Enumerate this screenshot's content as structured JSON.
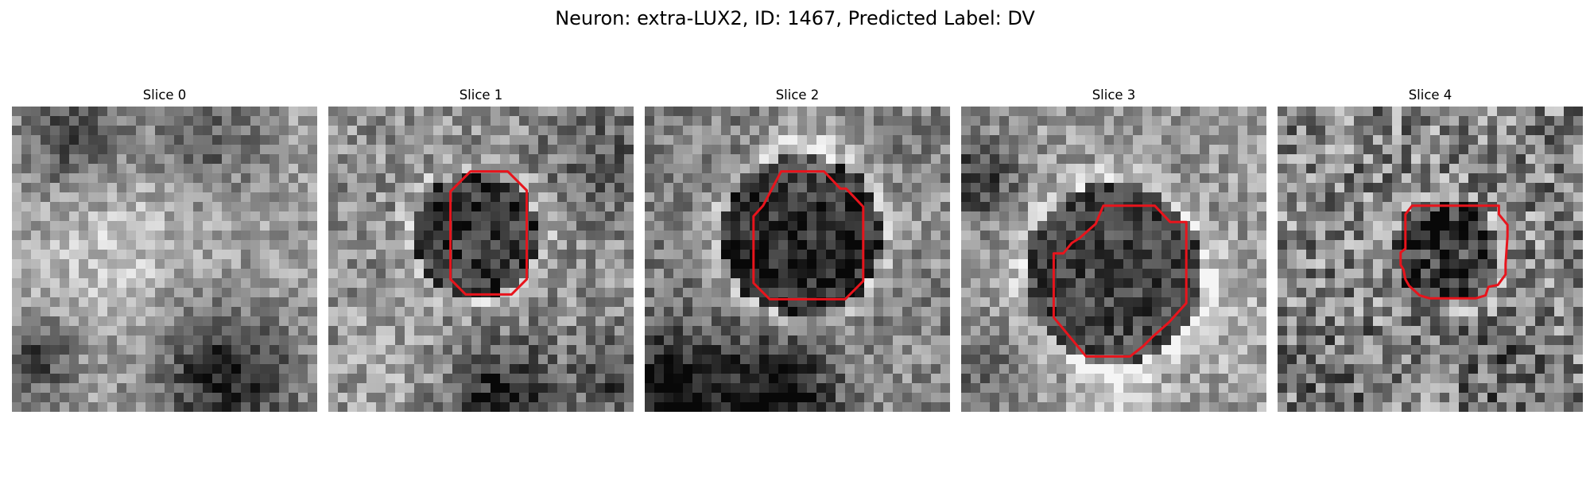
{
  "figure": {
    "title": "Neuron: extra-LUX2, ID: 1467, Predicted Label: DV"
  },
  "panels": [
    {
      "title": "Slice 0",
      "outline": false
    },
    {
      "title": "Slice 1",
      "outline": true
    },
    {
      "title": "Slice 2",
      "outline": true
    },
    {
      "title": "Slice 3",
      "outline": true
    },
    {
      "title": "Slice 4",
      "outline": true
    }
  ],
  "colors": {
    "outline": "#e8141c",
    "background": "#ffffff"
  }
}
